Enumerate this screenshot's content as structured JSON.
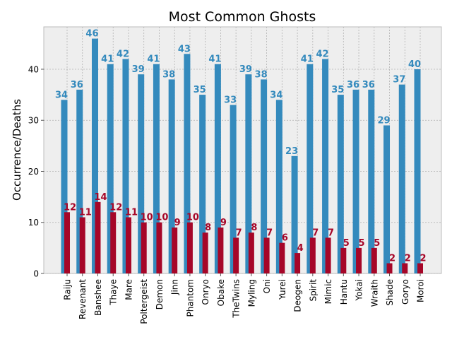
{
  "chart_data": {
    "type": "bar",
    "title": "Most Common Ghosts",
    "xlabel": "",
    "ylabel": "Occurrence/Deaths",
    "ylim": [
      0,
      48.3
    ],
    "yticks": [
      0,
      10,
      20,
      30,
      40
    ],
    "grid": true,
    "categories": [
      "Raiju",
      "Revenant",
      "Banshee",
      "Thaye",
      "Mare",
      "Poltergeist",
      "Demon",
      "Jinn",
      "Phantom",
      "Onryo",
      "Obake",
      "TheTwins",
      "Myling",
      "Oni",
      "Yurei",
      "Deogen",
      "Spirit",
      "Mimic",
      "Hantu",
      "Yokai",
      "Wraith",
      "Shade",
      "Goryo",
      "Moroi"
    ],
    "series": [
      {
        "name": "Occurrence",
        "color": "#348abd",
        "label_color": "#348abd",
        "values": [
          34,
          36,
          46,
          41,
          42,
          39,
          41,
          38,
          43,
          35,
          41,
          33,
          39,
          38,
          34,
          23,
          41,
          42,
          35,
          36,
          36,
          29,
          37,
          40
        ]
      },
      {
        "name": "Deaths",
        "color": "#a60628",
        "label_color": "#a60628",
        "values": [
          12,
          11,
          14,
          12,
          11,
          10,
          10,
          9,
          10,
          8,
          9,
          7,
          8,
          7,
          6,
          4,
          7,
          7,
          5,
          5,
          5,
          2,
          2,
          2
        ]
      }
    ]
  }
}
